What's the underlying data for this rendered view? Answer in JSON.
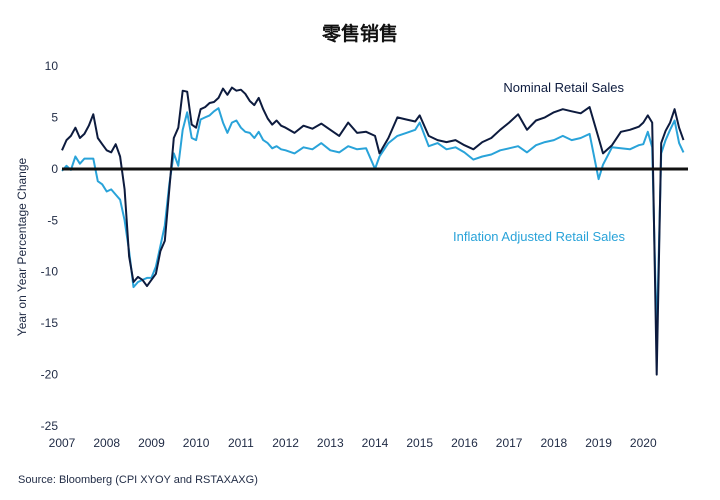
{
  "chart_data": {
    "type": "line",
    "title": "零售销售",
    "ylabel": "Year on Year Percentage Change",
    "xlabel": "",
    "source": "Source: Bloomberg (CPI XYOY and RSTAXAXG)",
    "xlim": [
      2007.0,
      2021.0
    ],
    "ylim": [
      -25,
      10
    ],
    "yticks": [
      10,
      5,
      0,
      -5,
      -10,
      -15,
      -20,
      -25
    ],
    "yticklabels": [
      "10",
      "5",
      "0",
      "-5",
      "-10",
      "-15",
      "-20",
      "-25"
    ],
    "xticklabels": [
      "2007",
      "2008",
      "2009",
      "2010",
      "2011",
      "2012",
      "2013",
      "2014",
      "2015",
      "2016",
      "2017",
      "2018",
      "2019",
      "2020"
    ],
    "grid": false,
    "zero_line": true,
    "colors": {
      "nominal": "#0d1b3e",
      "inflation": "#29a3d9",
      "zero": "#111111"
    },
    "series": [
      {
        "name": "Nominal Retail Sales",
        "color": "#0d1b3e",
        "x": [
          2007.0,
          2007.1,
          2007.2,
          2007.3,
          2007.4,
          2007.5,
          2007.6,
          2007.7,
          2007.8,
          2007.9,
          2008.0,
          2008.1,
          2008.2,
          2008.3,
          2008.4,
          2008.5,
          2008.6,
          2008.7,
          2008.8,
          2008.9,
          2009.0,
          2009.1,
          2009.2,
          2009.3,
          2009.4,
          2009.5,
          2009.6,
          2009.7,
          2009.8,
          2009.9,
          2010.0,
          2010.1,
          2010.2,
          2010.3,
          2010.4,
          2010.5,
          2010.6,
          2010.7,
          2010.8,
          2010.9,
          2011.0,
          2011.1,
          2011.2,
          2011.3,
          2011.4,
          2011.5,
          2011.6,
          2011.7,
          2011.8,
          2011.9,
          2012.0,
          2012.2,
          2012.4,
          2012.6,
          2012.8,
          2013.0,
          2013.2,
          2013.4,
          2013.6,
          2013.8,
          2014.0,
          2014.1,
          2014.3,
          2014.5,
          2014.7,
          2014.9,
          2015.0,
          2015.2,
          2015.4,
          2015.6,
          2015.8,
          2016.0,
          2016.2,
          2016.4,
          2016.6,
          2016.8,
          2017.0,
          2017.2,
          2017.4,
          2017.6,
          2017.8,
          2018.0,
          2018.2,
          2018.4,
          2018.6,
          2018.8,
          2019.0,
          2019.1,
          2019.3,
          2019.5,
          2019.7,
          2019.9,
          2020.0,
          2020.1,
          2020.2,
          2020.3,
          2020.4,
          2020.5,
          2020.6,
          2020.7,
          2020.8,
          2020.9
        ],
        "values": [
          1.8,
          2.8,
          3.2,
          4.0,
          3.0,
          3.4,
          4.2,
          5.3,
          3.0,
          2.4,
          1.8,
          1.6,
          2.4,
          1.2,
          -2.0,
          -8.5,
          -11.0,
          -10.5,
          -10.8,
          -11.4,
          -10.8,
          -10.2,
          -8.0,
          -7.0,
          -2.0,
          3.0,
          4.0,
          7.6,
          7.5,
          4.3,
          4.0,
          5.8,
          6.0,
          6.4,
          6.5,
          6.9,
          7.8,
          7.2,
          7.9,
          7.6,
          7.7,
          7.3,
          6.6,
          6.2,
          6.9,
          5.8,
          4.9,
          4.3,
          4.7,
          4.2,
          4.0,
          3.5,
          4.2,
          3.9,
          4.4,
          3.8,
          3.2,
          4.5,
          3.5,
          3.6,
          3.2,
          1.5,
          3.0,
          5.0,
          4.8,
          4.6,
          5.2,
          3.2,
          2.8,
          2.6,
          2.8,
          2.3,
          1.9,
          2.6,
          3.0,
          3.8,
          4.5,
          5.3,
          3.8,
          4.7,
          5.0,
          5.5,
          5.8,
          5.6,
          5.4,
          6.0,
          3.0,
          1.5,
          2.3,
          3.6,
          3.8,
          4.1,
          4.5,
          5.2,
          4.5,
          -20.0,
          2.5,
          3.7,
          4.5,
          5.8,
          4.0,
          2.8
        ]
      },
      {
        "name": "Inflation Adjusted Retail Sales",
        "color": "#29a3d9",
        "x": [
          2007.0,
          2007.1,
          2007.2,
          2007.3,
          2007.4,
          2007.5,
          2007.6,
          2007.7,
          2007.8,
          2007.9,
          2008.0,
          2008.1,
          2008.2,
          2008.3,
          2008.4,
          2008.5,
          2008.6,
          2008.7,
          2008.8,
          2008.9,
          2009.0,
          2009.1,
          2009.2,
          2009.3,
          2009.4,
          2009.5,
          2009.6,
          2009.7,
          2009.8,
          2009.9,
          2010.0,
          2010.1,
          2010.2,
          2010.3,
          2010.4,
          2010.5,
          2010.6,
          2010.7,
          2010.8,
          2010.9,
          2011.0,
          2011.1,
          2011.2,
          2011.3,
          2011.4,
          2011.5,
          2011.6,
          2011.7,
          2011.8,
          2011.9,
          2012.0,
          2012.2,
          2012.4,
          2012.6,
          2012.8,
          2013.0,
          2013.2,
          2013.4,
          2013.6,
          2013.8,
          2014.0,
          2014.1,
          2014.3,
          2014.5,
          2014.7,
          2014.9,
          2015.0,
          2015.2,
          2015.4,
          2015.6,
          2015.8,
          2016.0,
          2016.2,
          2016.4,
          2016.6,
          2016.8,
          2017.0,
          2017.2,
          2017.4,
          2017.6,
          2017.8,
          2018.0,
          2018.2,
          2018.4,
          2018.6,
          2018.8,
          2019.0,
          2019.1,
          2019.3,
          2019.5,
          2019.7,
          2019.9,
          2020.0,
          2020.1,
          2020.2,
          2020.3,
          2020.4,
          2020.5,
          2020.6,
          2020.7,
          2020.8,
          2020.9
        ],
        "values": [
          -0.2,
          0.3,
          -0.1,
          1.2,
          0.5,
          1.0,
          1.0,
          1.0,
          -1.2,
          -1.5,
          -2.2,
          -2.0,
          -2.5,
          -3.0,
          -5.0,
          -8.0,
          -11.5,
          -11.0,
          -10.8,
          -10.6,
          -10.6,
          -9.5,
          -7.5,
          -5.5,
          -1.5,
          1.5,
          0.3,
          3.8,
          5.5,
          3.0,
          2.8,
          4.8,
          5.0,
          5.2,
          5.6,
          5.9,
          4.5,
          3.5,
          4.5,
          4.7,
          4.0,
          3.6,
          3.5,
          3.0,
          3.6,
          2.8,
          2.5,
          2.0,
          2.2,
          1.9,
          1.8,
          1.5,
          2.1,
          1.9,
          2.5,
          1.8,
          1.6,
          2.2,
          1.9,
          2.0,
          0.0,
          1.2,
          2.5,
          3.2,
          3.5,
          3.8,
          4.5,
          2.2,
          2.5,
          1.9,
          2.1,
          1.6,
          0.9,
          1.2,
          1.4,
          1.8,
          2.0,
          2.2,
          1.6,
          2.3,
          2.6,
          2.8,
          3.2,
          2.8,
          3.0,
          3.4,
          -1.0,
          0.4,
          2.1,
          2.0,
          1.9,
          2.3,
          2.4,
          3.6,
          2.1,
          -16.5,
          1.5,
          2.8,
          3.8,
          4.7,
          2.5,
          1.6
        ]
      }
    ],
    "annotations": [
      {
        "text": "Nominal Retail Sales",
        "series": 0
      },
      {
        "text": "Inflation Adjusted Retail Sales",
        "series": 1
      }
    ]
  }
}
